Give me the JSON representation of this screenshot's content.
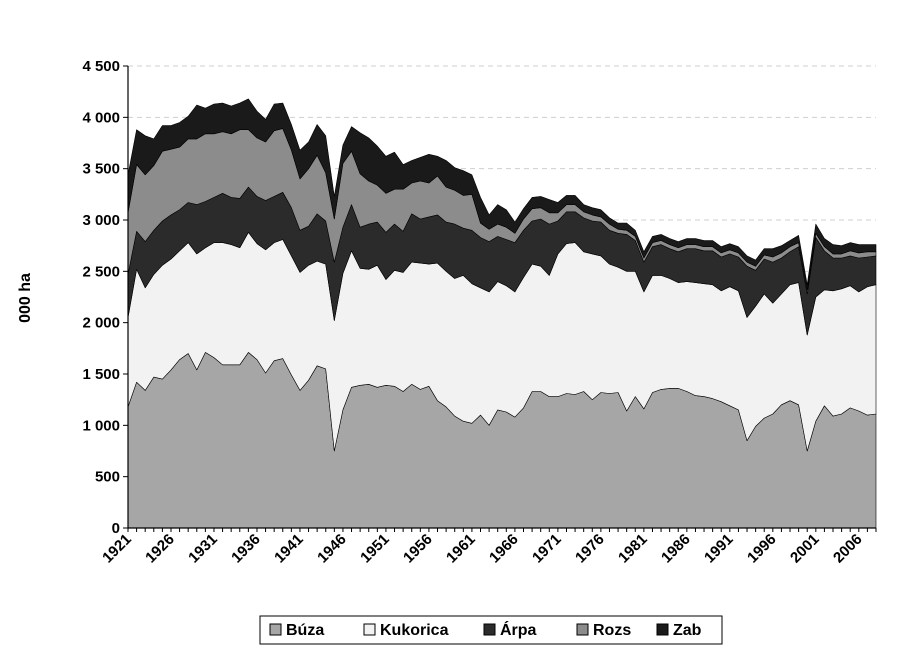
{
  "chart_data": {
    "type": "area",
    "stacked": true,
    "ylabel": "000 ha",
    "xlabel": "",
    "ylim": [
      0,
      4500
    ],
    "y_ticks": [
      "0",
      "500",
      "1 000",
      "1 500",
      "2 000",
      "2 500",
      "3 000",
      "3 500",
      "4 000",
      "4 500"
    ],
    "x_tick_labels": [
      "1921",
      "1926",
      "1931",
      "1936",
      "1941",
      "1946",
      "1951",
      "1956",
      "1961",
      "1966",
      "1971",
      "1976",
      "1981",
      "1986",
      "1991",
      "1996",
      "2001",
      "2006"
    ],
    "grid": "horizontal dashed",
    "legend_position": "bottom",
    "x": [
      1921,
      1922,
      1923,
      1924,
      1925,
      1926,
      1927,
      1928,
      1929,
      1930,
      1931,
      1932,
      1933,
      1934,
      1935,
      1936,
      1937,
      1938,
      1939,
      1940,
      1941,
      1942,
      1943,
      1944,
      1945,
      1946,
      1947,
      1948,
      1949,
      1950,
      1951,
      1952,
      1953,
      1954,
      1955,
      1956,
      1957,
      1958,
      1959,
      1960,
      1961,
      1962,
      1963,
      1964,
      1965,
      1966,
      1967,
      1968,
      1969,
      1970,
      1971,
      1972,
      1973,
      1974,
      1975,
      1976,
      1977,
      1978,
      1979,
      1980,
      1981,
      1982,
      1983,
      1984,
      1985,
      1986,
      1987,
      1988,
      1989,
      1990,
      1991,
      1992,
      1993,
      1994,
      1995,
      1996,
      1997,
      1998,
      1999,
      2000,
      2001,
      2002,
      2003,
      2004,
      2005,
      2006,
      2007,
      2008
    ],
    "series": [
      {
        "name": "Búza",
        "color": "#a6a6a6",
        "values": [
          1180,
          1420,
          1340,
          1470,
          1450,
          1540,
          1640,
          1700,
          1540,
          1710,
          1660,
          1590,
          1590,
          1590,
          1710,
          1640,
          1510,
          1630,
          1650,
          1490,
          1340,
          1440,
          1580,
          1550,
          750,
          1150,
          1370,
          1390,
          1400,
          1370,
          1390,
          1380,
          1330,
          1400,
          1350,
          1380,
          1240,
          1180,
          1090,
          1040,
          1020,
          1100,
          1000,
          1150,
          1130,
          1080,
          1170,
          1330,
          1330,
          1280,
          1280,
          1310,
          1300,
          1330,
          1250,
          1320,
          1310,
          1320,
          1140,
          1280,
          1160,
          1320,
          1350,
          1360,
          1360,
          1330,
          1290,
          1280,
          1260,
          1230,
          1190,
          1150,
          850,
          990,
          1070,
          1110,
          1200,
          1240,
          1200,
          750,
          1040,
          1190,
          1090,
          1110,
          1170,
          1140,
          1100,
          1110
        ]
      },
      {
        "name": "Kukorica",
        "color": "#f2f2f2",
        "values": [
          870,
          1100,
          1000,
          1000,
          1110,
          1080,
          1060,
          1080,
          1130,
          1020,
          1120,
          1190,
          1170,
          1140,
          1170,
          1130,
          1200,
          1150,
          1160,
          1160,
          1150,
          1120,
          1020,
          1020,
          1270,
          1330,
          1330,
          1140,
          1120,
          1190,
          1030,
          1130,
          1160,
          1190,
          1230,
          1190,
          1340,
          1320,
          1340,
          1420,
          1360,
          1240,
          1300,
          1250,
          1230,
          1220,
          1270,
          1240,
          1220,
          1180,
          1390,
          1460,
          1480,
          1360,
          1420,
          1330,
          1260,
          1220,
          1360,
          1220,
          1140,
          1140,
          1110,
          1070,
          1030,
          1070,
          1100,
          1100,
          1110,
          1080,
          1160,
          1160,
          1200,
          1170,
          1210,
          1080,
          1080,
          1130,
          1190,
          1130,
          1210,
          1130,
          1220,
          1220,
          1190,
          1160,
          1250,
          1260
        ]
      },
      {
        "name": "Árpa",
        "color": "#2b2b2b",
        "values": [
          420,
          370,
          450,
          430,
          430,
          430,
          400,
          390,
          480,
          450,
          440,
          480,
          460,
          480,
          440,
          460,
          480,
          450,
          460,
          470,
          410,
          380,
          460,
          420,
          570,
          450,
          450,
          400,
          440,
          420,
          460,
          450,
          400,
          470,
          430,
          460,
          470,
          480,
          530,
          460,
          520,
          490,
          490,
          440,
          450,
          480,
          460,
          420,
          460,
          500,
          320,
          310,
          300,
          330,
          320,
          330,
          330,
          330,
          360,
          300,
          290,
          280,
          300,
          290,
          300,
          320,
          330,
          320,
          330,
          330,
          320,
          330,
          500,
          350,
          340,
          400,
          350,
          320,
          350,
          400,
          580,
          380,
          320,
          300,
          290,
          330,
          290,
          280
        ]
      },
      {
        "name": "Rozs",
        "color": "#8c8c8c",
        "values": [
          600,
          650,
          650,
          630,
          680,
          640,
          610,
          620,
          640,
          660,
          620,
          600,
          620,
          670,
          560,
          570,
          570,
          640,
          620,
          560,
          500,
          560,
          570,
          470,
          420,
          620,
          520,
          520,
          420,
          360,
          380,
          340,
          410,
          300,
          370,
          330,
          380,
          340,
          330,
          320,
          350,
          140,
          120,
          120,
          120,
          90,
          110,
          120,
          110,
          110,
          80,
          70,
          70,
          60,
          60,
          50,
          60,
          40,
          40,
          40,
          40,
          40,
          40,
          40,
          40,
          40,
          40,
          40,
          40,
          40,
          40,
          40,
          40,
          40,
          40,
          50,
          50,
          50,
          40,
          40,
          40,
          40,
          40,
          40,
          50,
          50,
          50,
          40
        ]
      },
      {
        "name": "Zab",
        "color": "#1a1a1a",
        "values": [
          370,
          340,
          380,
          260,
          250,
          230,
          240,
          220,
          330,
          250,
          290,
          280,
          270,
          260,
          300,
          260,
          220,
          260,
          250,
          250,
          280,
          260,
          300,
          360,
          220,
          180,
          240,
          400,
          420,
          380,
          360,
          360,
          240,
          220,
          230,
          280,
          190,
          260,
          220,
          240,
          190,
          250,
          140,
          190,
          170,
          110,
          100,
          110,
          110,
          130,
          100,
          90,
          90,
          70,
          70,
          70,
          60,
          60,
          70,
          60,
          60,
          60,
          60,
          60,
          60,
          60,
          60,
          60,
          60,
          60,
          60,
          60,
          60,
          60,
          60,
          80,
          70,
          60,
          70,
          50,
          90,
          80,
          90,
          80,
          80,
          80,
          70,
          70
        ]
      }
    ]
  }
}
